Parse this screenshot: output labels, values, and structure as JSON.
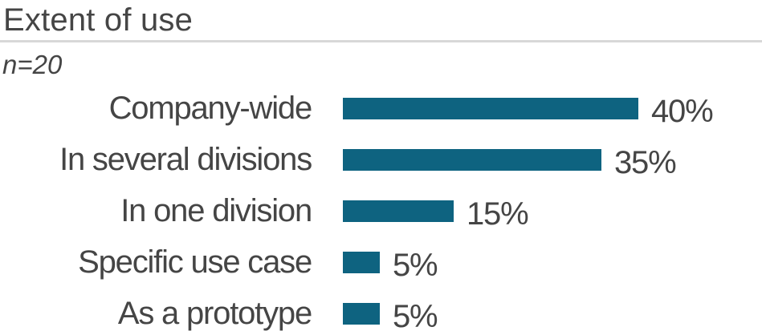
{
  "header": {
    "title": "Extent of use",
    "note": "n=20"
  },
  "chart_data": {
    "type": "bar",
    "orientation": "horizontal",
    "title": "Extent of use",
    "subtitle": "n=20",
    "categories": [
      "Company-wide",
      "In several divisions",
      "In one division",
      "Specific use case",
      "As a prototype"
    ],
    "values": [
      40,
      35,
      15,
      5,
      5
    ],
    "value_labels": [
      "40%",
      "35%",
      "15%",
      "5%",
      "5%"
    ],
    "value_suffix": "%",
    "xlim": [
      0,
      100
    ],
    "grid": false,
    "legend": false,
    "colors": {
      "bar": "#0e6380",
      "text": "#454545",
      "divider": "#d8d8d8"
    }
  }
}
